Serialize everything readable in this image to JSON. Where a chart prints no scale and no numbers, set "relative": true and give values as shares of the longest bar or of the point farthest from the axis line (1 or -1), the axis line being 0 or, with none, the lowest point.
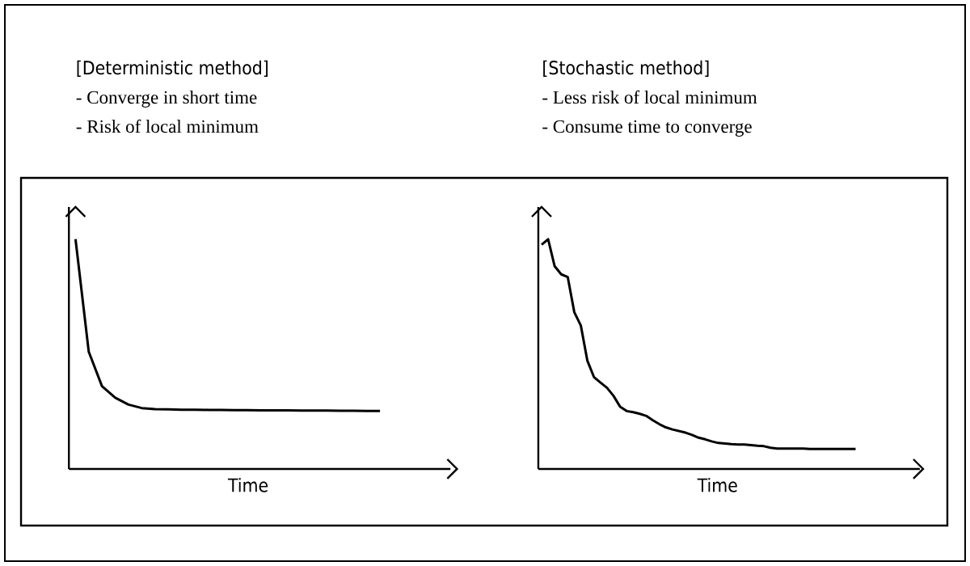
{
  "chart_data": [
    {
      "type": "line",
      "relative": true,
      "title": "[Deterministic method]",
      "annotations": [
        "- Converge in short time",
        "- Risk of local minimum"
      ],
      "xlabel": "Time",
      "color": "#000000",
      "categories": [
        null,
        null,
        null,
        null,
        null,
        null,
        null,
        null,
        null,
        null,
        null,
        null,
        null,
        null,
        null,
        null,
        null,
        null,
        null,
        null,
        null,
        null,
        null,
        null
      ],
      "values": [
        1.0,
        0.51,
        0.36,
        0.31,
        0.28,
        0.265,
        0.26,
        0.259,
        0.258,
        0.258,
        0.257,
        0.257,
        0.256,
        0.256,
        0.255,
        0.255,
        0.255,
        0.254,
        0.254,
        0.254,
        0.253,
        0.253,
        0.252,
        0.252
      ]
    },
    {
      "type": "line",
      "relative": true,
      "title": "[Stochastic method]",
      "annotations": [
        "- Less risk of local minimum",
        "- Consume time to converge"
      ],
      "xlabel": "Time",
      "color": "#000000",
      "categories": [
        null,
        null,
        null,
        null,
        null,
        null,
        null,
        null,
        null,
        null,
        null,
        null,
        null,
        null,
        null,
        null,
        null,
        null,
        null,
        null,
        null,
        null,
        null,
        null,
        null,
        null,
        null,
        null,
        null,
        null,
        null,
        null,
        null,
        null,
        null,
        null,
        null,
        null,
        null,
        null,
        null,
        null,
        null,
        null,
        null,
        null,
        null,
        null,
        null
      ],
      "values": [
        0.976,
        1.0,
        0.882,
        0.847,
        0.835,
        0.682,
        0.624,
        0.471,
        0.4,
        0.376,
        0.353,
        0.318,
        0.271,
        0.252,
        0.247,
        0.24,
        0.231,
        0.212,
        0.195,
        0.181,
        0.172,
        0.165,
        0.158,
        0.148,
        0.136,
        0.129,
        0.12,
        0.113,
        0.111,
        0.108,
        0.106,
        0.106,
        0.104,
        0.101,
        0.099,
        0.092,
        0.089,
        0.089,
        0.089,
        0.089,
        0.089,
        0.087,
        0.087,
        0.087,
        0.087,
        0.087,
        0.087,
        0.087,
        0.087
      ]
    }
  ]
}
